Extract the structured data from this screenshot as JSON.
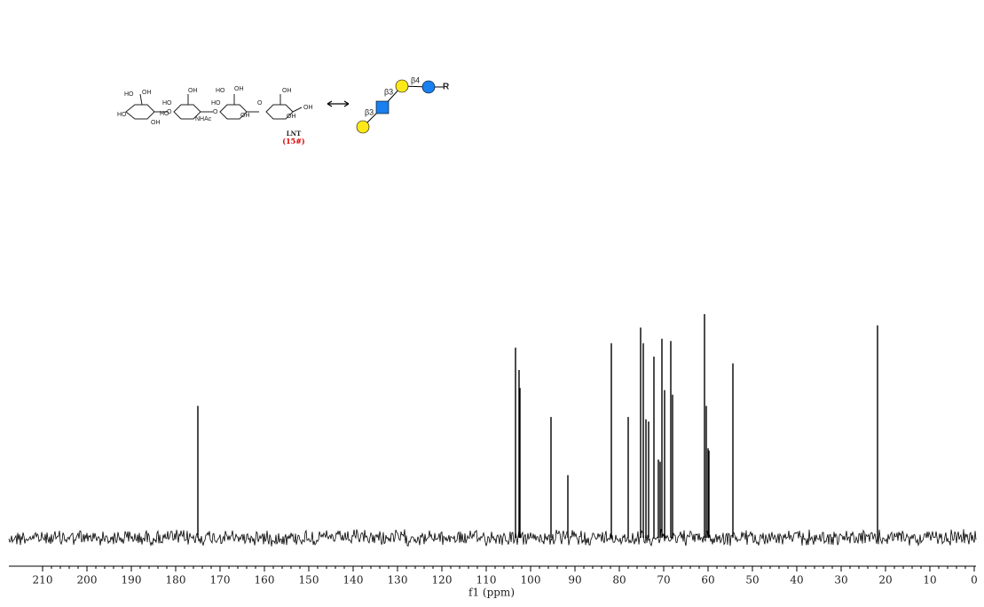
{
  "chart_data": {
    "type": "spectrum",
    "x_label": "f1 (ppm)",
    "xlim": [
      217.6,
      -0.4
    ],
    "xticks": [
      210,
      200,
      190,
      180,
      170,
      160,
      150,
      140,
      130,
      120,
      110,
      100,
      90,
      80,
      70,
      60,
      50,
      40,
      30,
      20,
      10,
      0
    ],
    "ylim": [
      0,
      100
    ],
    "color": "#000000",
    "x": [
      175.0,
      103.4,
      102.6,
      102.4,
      95.4,
      91.6,
      81.8,
      78.0,
      75.2,
      74.6,
      74.0,
      73.4,
      72.2,
      71.2,
      70.8,
      70.4,
      69.8,
      68.4,
      68.0,
      60.8,
      60.4,
      60.0,
      59.8,
      54.4,
      21.8
    ],
    "values": [
      59,
      85,
      75,
      67,
      54,
      28,
      87,
      54,
      94,
      87,
      53,
      52,
      81,
      35,
      34,
      89,
      66,
      88,
      64,
      100,
      59,
      40,
      39,
      78,
      95
    ]
  },
  "structure": {
    "name": "LNT",
    "code": "(15#)",
    "linkages": [
      "β3",
      "β3",
      "β4"
    ],
    "aglycone": "R",
    "atom_labels": [
      "HO",
      "OH",
      "HO",
      "OH",
      "O",
      "HO",
      "OH",
      "HO",
      "NHAc",
      "O",
      "HO",
      "OH",
      "HO",
      "OH",
      "O",
      "OH",
      "OH",
      "OH"
    ]
  }
}
